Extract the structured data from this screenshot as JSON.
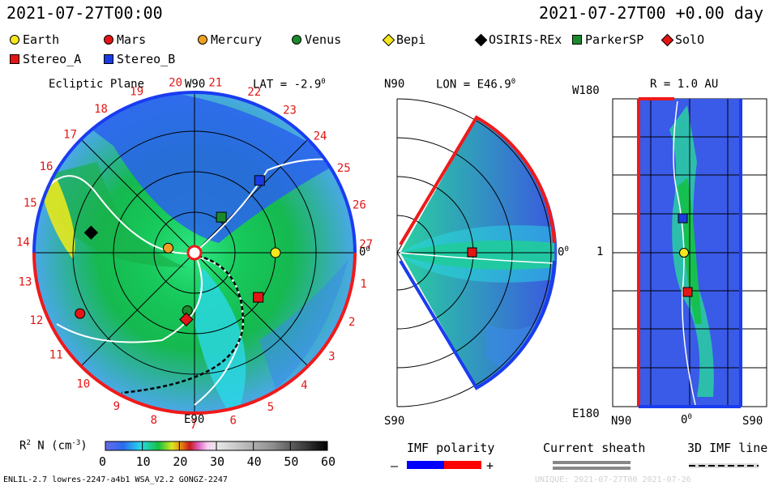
{
  "header": {
    "time_left": "2021-07-27T00:00",
    "time_right": "2021-07-27T00 +0.00 day"
  },
  "legend": [
    {
      "label": "Earth",
      "shape": "circle",
      "color": "#f5e61e"
    },
    {
      "label": "Mars",
      "shape": "circle",
      "color": "#e31515"
    },
    {
      "label": "Mercury",
      "shape": "circle",
      "color": "#f0a020"
    },
    {
      "label": "Venus",
      "shape": "circle",
      "color": "#1a8a2a"
    },
    {
      "label": "Bepi",
      "shape": "diamond",
      "color": "#f5e61e"
    },
    {
      "label": "OSIRIS-REx",
      "shape": "diamond",
      "color": "#000000"
    },
    {
      "label": "ParkerSP",
      "shape": "square",
      "color": "#1a8a2a"
    },
    {
      "label": "SolO",
      "shape": "diamond",
      "color": "#e31515"
    },
    {
      "label": "Stereo_A",
      "shape": "square",
      "color": "#e31515"
    },
    {
      "label": "Stereo_B",
      "shape": "square",
      "color": "#1a3ce0"
    }
  ],
  "ecliptic": {
    "title": "Ecliptic Plane",
    "top_label": "W90",
    "bottom_label": "E90",
    "right_label": "0",
    "right_label_sup": "0",
    "lat_label": "LAT = -2.9",
    "lat_sup": "0",
    "ticks": [
      "1",
      "2",
      "3",
      "4",
      "5",
      "6",
      "7",
      "8",
      "9",
      "10",
      "11",
      "12",
      "13",
      "14",
      "15",
      "16",
      "17",
      "18",
      "19",
      "20",
      "21",
      "22",
      "23",
      "24",
      "25",
      "26",
      "27"
    ]
  },
  "meridional": {
    "top_label": "N90",
    "bottom_label": "S90",
    "right_label": "0",
    "right_sup": "0",
    "lon_label": "LON = E46.9",
    "lon_sup": "0"
  },
  "radial": {
    "title": "R = 1.0 AU",
    "top_left": "W180",
    "mid_left": "1",
    "bottom_left": "E180",
    "bottom_n": "N90",
    "bottom_mid": "0",
    "bottom_mid_sup": "0",
    "bottom_s": "S90"
  },
  "colorbar": {
    "label": "R",
    "label_sup": "2",
    "label_rest": " N (cm",
    "label_exp": "-3",
    "label_end": ")",
    "ticks": [
      "0",
      "10",
      "20",
      "30",
      "40",
      "50",
      "60"
    ]
  },
  "imf_polarity": {
    "title": "IMF polarity",
    "minus": "–",
    "plus": "+",
    "neg_color": "#0000ff",
    "pos_color": "#ff0000"
  },
  "current_sheath": {
    "title": "Current sheath"
  },
  "imf_line": {
    "title": "3D IMF line"
  },
  "footer": {
    "left": "ENLIL-2.7 lowres-2247-a4b1 WSA_V2.2 GONGZ-2247",
    "right": "UNIQUE:  2021-07-27T00  2021-07-26"
  },
  "chart_data": [
    {
      "type": "heatmap",
      "title": "Ecliptic Plane",
      "quantity": "R2 N (cm-3)",
      "range": [
        0,
        60
      ],
      "bodies": [
        {
          "name": "Earth",
          "lon_deg": 0,
          "r_au": 1.0
        },
        {
          "name": "Mercury",
          "lon_deg": 170,
          "r_au": 0.33
        },
        {
          "name": "Venus",
          "lon_deg": -97,
          "r_au": 0.72
        },
        {
          "name": "Mars",
          "lon_deg": -152,
          "r_au": 1.6
        },
        {
          "name": "SolO",
          "lon_deg": -97,
          "r_au": 0.83
        },
        {
          "name": "ParkerSP",
          "lon_deg": 53,
          "r_au": 0.55
        },
        {
          "name": "Stereo_A",
          "lon_deg": -35,
          "r_au": 0.96
        },
        {
          "name": "Stereo_B",
          "lon_deg": 48,
          "r_au": 1.2
        },
        {
          "name": "OSIRIS-REx",
          "lon_deg": 169,
          "r_au": 1.3
        }
      ]
    },
    {
      "type": "heatmap",
      "title": "LON = E46.9",
      "bodies": [
        {
          "name": "Stereo_A",
          "lat_deg": 0,
          "r_au": 0.96
        }
      ]
    },
    {
      "type": "heatmap",
      "title": "R = 1.0 AU",
      "bodies": [
        {
          "name": "Stereo_B",
          "lon_frac": 0.32,
          "lat_frac": 0.48
        },
        {
          "name": "Earth",
          "lon_frac": 0.5,
          "lat_frac": 0.5
        },
        {
          "name": "Stereo_A",
          "lon_frac": 0.65,
          "lat_frac": 0.53
        }
      ]
    }
  ]
}
